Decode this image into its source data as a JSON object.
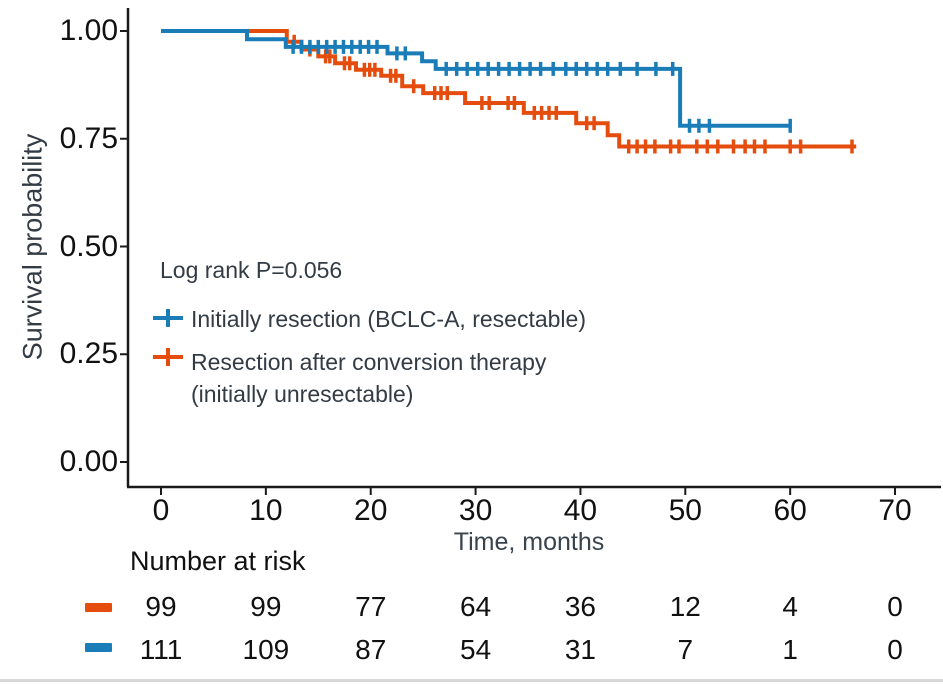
{
  "figure": {
    "annotation": "Log rank P=0.056",
    "colors": {
      "blue": "#1B7DB8",
      "orange": "#E44D0E",
      "axis": "#1a1a1a",
      "rule": "#d8d8d8"
    }
  },
  "chart_data": {
    "type": "line",
    "subtype": "kaplan-meier-step",
    "title": "",
    "xlabel": "Time, months",
    "ylabel": "Survival probability",
    "xlim": [
      0,
      70
    ],
    "ylim": [
      0.0,
      1.0
    ],
    "grid": false,
    "legend_position": "inside-left",
    "annotation": "Log rank P=0.056",
    "xticks": [
      0,
      10,
      20,
      30,
      40,
      50,
      60,
      70
    ],
    "yticks": [
      {
        "label": "1.00",
        "value": 1.0
      },
      {
        "label": "0.75",
        "value": 0.75
      },
      {
        "label": "0.50",
        "value": 0.5
      },
      {
        "label": "0.25",
        "value": 0.25
      },
      {
        "label": "0.00",
        "value": 0.0
      }
    ],
    "series": [
      {
        "name": "Initially resection (BCLC-A, resectable)",
        "name_lines": [
          "Initially resection (BCLC-A, resectable)"
        ],
        "color": "#1B7DB8",
        "steps": [
          [
            0,
            1.0
          ],
          [
            8.2,
            0.981
          ],
          [
            11.9,
            0.963
          ],
          [
            21.6,
            0.948
          ],
          [
            24.9,
            0.93
          ],
          [
            26.2,
            0.912
          ],
          [
            49.5,
            0.78
          ],
          [
            60.0,
            0.78
          ]
        ],
        "censor_times": [
          12.6,
          13.4,
          14.2,
          15.0,
          15.8,
          16.6,
          17.4,
          18.2,
          19.0,
          19.8,
          20.6,
          22.5,
          23.3,
          27.2,
          28.2,
          29.2,
          30.2,
          31.2,
          32.2,
          33.2,
          34.2,
          35.2,
          36.2,
          37.4,
          38.6,
          39.6,
          40.6,
          41.6,
          42.6,
          43.8,
          45.4,
          47.2,
          48.8,
          50.4,
          51.3,
          52.3,
          60.0
        ]
      },
      {
        "name": "Resection after conversion therapy (initially unresectable)",
        "name_lines": [
          "Resection after conversion therapy",
          "(initially unresectable)"
        ],
        "color": "#E44D0E",
        "steps": [
          [
            0,
            1.0
          ],
          [
            12.0,
            0.975
          ],
          [
            13.4,
            0.957
          ],
          [
            15.0,
            0.941
          ],
          [
            16.6,
            0.925
          ],
          [
            18.6,
            0.91
          ],
          [
            21.0,
            0.896
          ],
          [
            23.0,
            0.872
          ],
          [
            25.0,
            0.856
          ],
          [
            29.0,
            0.833
          ],
          [
            34.6,
            0.81
          ],
          [
            39.6,
            0.786
          ],
          [
            42.6,
            0.758
          ],
          [
            43.7,
            0.732
          ],
          [
            66.3,
            0.732
          ]
        ],
        "censor_times": [
          12.7,
          14.2,
          15.7,
          16.1,
          17.5,
          18.0,
          19.4,
          19.9,
          20.4,
          21.9,
          22.4,
          24.1,
          26.1,
          26.7,
          27.3,
          30.6,
          31.3,
          33.1,
          33.7,
          35.6,
          36.3,
          37.0,
          37.7,
          40.6,
          41.3,
          44.6,
          45.4,
          46.2,
          47.1,
          48.6,
          49.4,
          51.1,
          52.1,
          53.1,
          54.6,
          55.7,
          56.6,
          57.6,
          60.0,
          61.0,
          65.9
        ]
      }
    ],
    "risk_table": {
      "title": "Number at risk",
      "times": [
        0,
        10,
        20,
        30,
        40,
        50,
        60,
        70
      ],
      "rows": [
        {
          "series": "Resection after conversion therapy (initially unresectable)",
          "color": "#E44D0E",
          "counts": [
            99,
            99,
            77,
            64,
            36,
            12,
            4,
            0
          ]
        },
        {
          "series": "Initially resection (BCLC-A, resectable)",
          "color": "#1B7DB8",
          "counts": [
            111,
            109,
            87,
            54,
            31,
            7,
            1,
            0
          ]
        }
      ]
    }
  }
}
